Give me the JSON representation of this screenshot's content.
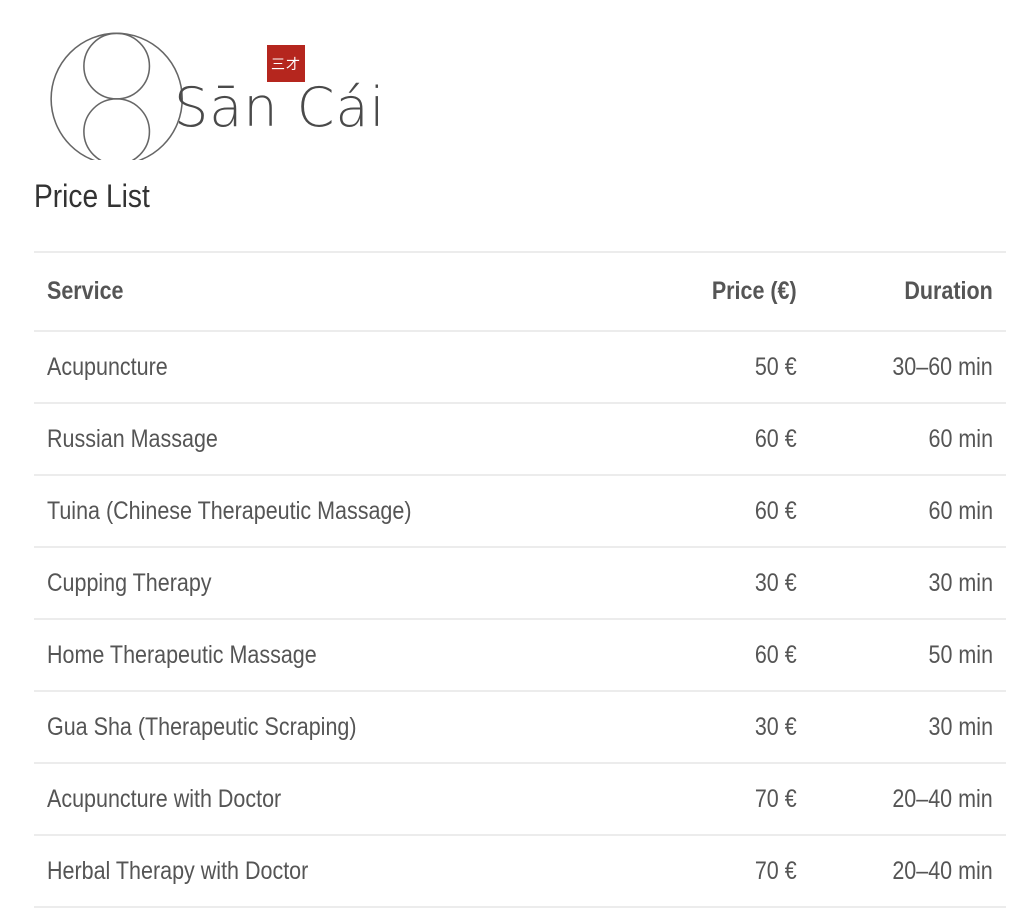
{
  "brand": {
    "name": "Sān Cái",
    "seal_text": "三才",
    "seal_color": "#b5261e"
  },
  "page_title": "Price List",
  "table": {
    "headers": [
      "Service",
      "Price (€)",
      "Duration"
    ],
    "rows": [
      [
        "Acupuncture",
        "50 €",
        "30–60 min"
      ],
      [
        "Russian Massage",
        "60 €",
        "60 min"
      ],
      [
        "Tuina (Chinese Therapeutic Massage)",
        "60 €",
        "60 min"
      ],
      [
        "Cupping Therapy",
        "30 €",
        "30 min"
      ],
      [
        "Home Therapeutic Massage",
        "60 €",
        "50 min"
      ],
      [
        "Gua Sha (Therapeutic Scraping)",
        "30 €",
        "30 min"
      ],
      [
        "Acupuncture with Doctor",
        "70 €",
        "20–40 min"
      ],
      [
        "Herbal Therapy with Doctor",
        "70 €",
        "20–40 min"
      ]
    ]
  }
}
